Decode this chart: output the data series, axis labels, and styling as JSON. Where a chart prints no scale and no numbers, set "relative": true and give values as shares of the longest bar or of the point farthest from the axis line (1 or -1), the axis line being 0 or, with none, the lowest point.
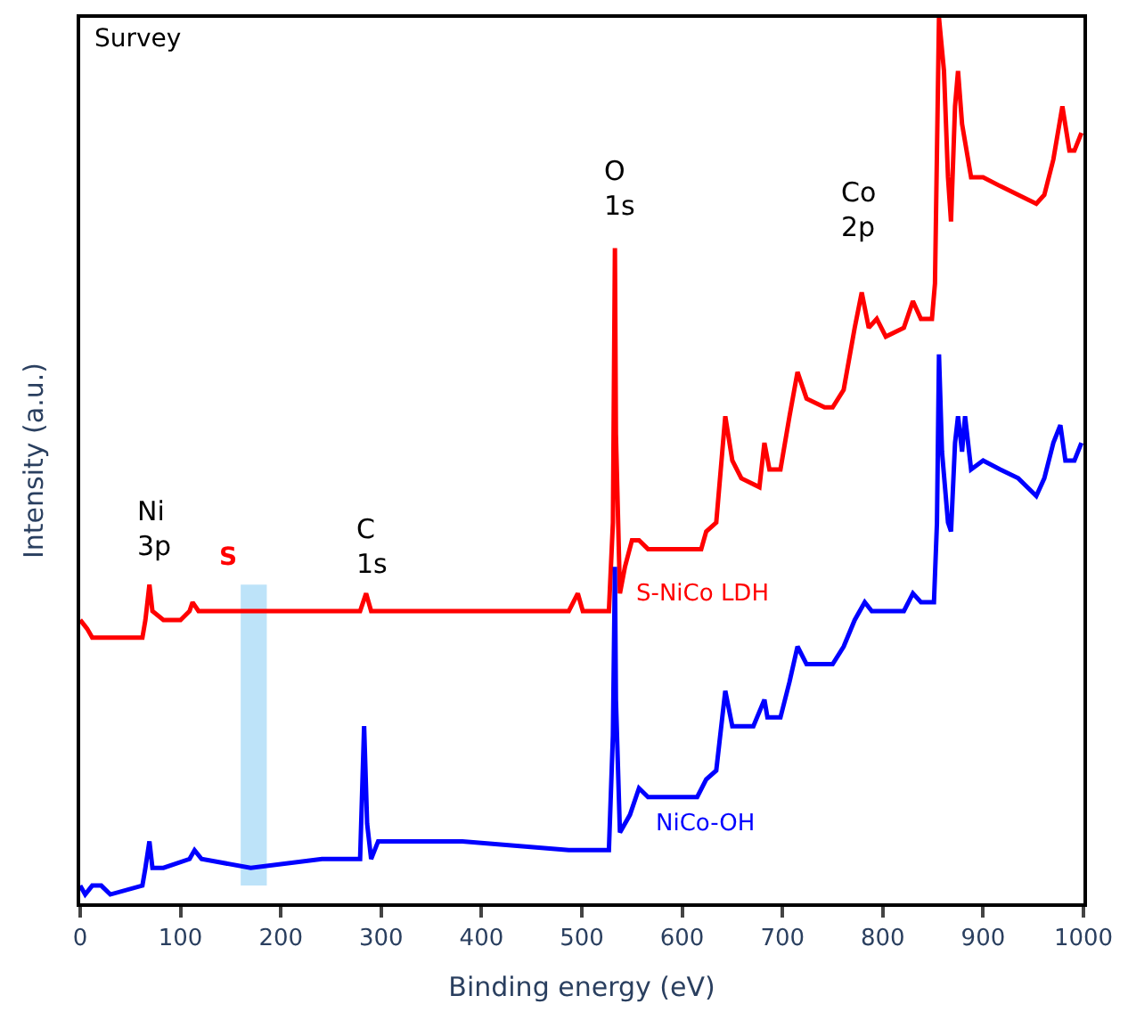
{
  "chart_data": {
    "type": "line",
    "relative": true,
    "xlabel": "Binding energy (eV)",
    "ylabel": "Intensity (a.u.)",
    "xlim": [
      0,
      1000
    ],
    "xticks": [
      0,
      100,
      200,
      300,
      400,
      500,
      600,
      700,
      800,
      900,
      1000
    ],
    "grid": false,
    "legend": false,
    "marker": "none",
    "line_style": "solid",
    "series": [
      {
        "name": "S-NiCo LDH",
        "color": "#ff0000",
        "x": [
          0,
          7,
          12,
          21,
          33,
          56,
          62,
          65,
          69,
          72,
          83,
          100,
          109,
          112,
          118,
          135,
          188,
          241,
          279,
          285,
          290,
          302,
          381,
          487,
          496,
          501,
          513,
          527,
          531,
          533,
          534,
          538,
          543,
          550,
          557,
          566,
          583,
          619,
          624,
          634,
          640,
          643,
          650,
          659,
          677,
          682,
          687,
          698,
          707,
          715,
          724,
          742,
          750,
          761,
          772,
          779,
          786,
          794,
          803,
          821,
          830,
          838,
          849,
          852,
          856,
          861,
          865,
          868,
          872,
          875,
          879,
          882,
          888,
          900,
          917,
          935,
          953,
          961,
          970,
          979,
          986,
          991,
          998
        ],
        "values": [
          0.32,
          0.31,
          0.3,
          0.3,
          0.3,
          0.3,
          0.3,
          0.32,
          0.36,
          0.33,
          0.32,
          0.32,
          0.33,
          0.34,
          0.33,
          0.33,
          0.33,
          0.33,
          0.33,
          0.35,
          0.33,
          0.33,
          0.33,
          0.33,
          0.35,
          0.33,
          0.33,
          0.33,
          0.43,
          0.74,
          0.53,
          0.35,
          0.38,
          0.41,
          0.41,
          0.4,
          0.4,
          0.4,
          0.42,
          0.43,
          0.51,
          0.55,
          0.5,
          0.48,
          0.47,
          0.52,
          0.49,
          0.49,
          0.55,
          0.6,
          0.57,
          0.56,
          0.56,
          0.58,
          0.65,
          0.69,
          0.65,
          0.66,
          0.64,
          0.65,
          0.68,
          0.66,
          0.66,
          0.7,
          1.0,
          0.94,
          0.82,
          0.77,
          0.9,
          0.94,
          0.88,
          0.86,
          0.82,
          0.82,
          0.81,
          0.8,
          0.79,
          0.8,
          0.84,
          0.9,
          0.85,
          0.85,
          0.87
        ]
      },
      {
        "name": "NiCo-OH",
        "color": "#0000ff",
        "x": [
          0,
          5,
          12,
          21,
          30,
          62,
          65,
          69,
          72,
          83,
          109,
          114,
          121,
          170,
          241,
          279,
          283,
          286,
          290,
          297,
          302,
          381,
          487,
          527,
          531,
          533,
          534,
          538,
          548,
          557,
          566,
          615,
          624,
          634,
          640,
          643,
          650,
          671,
          682,
          685,
          698,
          707,
          715,
          724,
          750,
          761,
          772,
          782,
          789,
          821,
          830,
          838,
          851,
          854,
          856,
          859,
          865,
          868,
          872,
          875,
          879,
          882,
          888,
          900,
          917,
          935,
          953,
          961,
          970,
          977,
          982,
          991,
          998
        ],
        "values": [
          0.02,
          0.01,
          0.02,
          0.02,
          0.01,
          0.02,
          0.04,
          0.07,
          0.04,
          0.04,
          0.05,
          0.06,
          0.05,
          0.04,
          0.05,
          0.05,
          0.2,
          0.09,
          0.05,
          0.07,
          0.07,
          0.07,
          0.06,
          0.06,
          0.19,
          0.38,
          0.23,
          0.08,
          0.1,
          0.13,
          0.12,
          0.12,
          0.14,
          0.15,
          0.21,
          0.24,
          0.2,
          0.2,
          0.23,
          0.21,
          0.21,
          0.25,
          0.29,
          0.27,
          0.27,
          0.29,
          0.32,
          0.34,
          0.33,
          0.33,
          0.35,
          0.34,
          0.34,
          0.43,
          0.62,
          0.51,
          0.43,
          0.42,
          0.52,
          0.55,
          0.51,
          0.55,
          0.49,
          0.5,
          0.49,
          0.48,
          0.46,
          0.48,
          0.52,
          0.54,
          0.5,
          0.5,
          0.52
        ]
      }
    ],
    "bands": [
      {
        "axis": "x",
        "from": 160,
        "to": 186,
        "label": "S",
        "color": "#bde3f9"
      }
    ],
    "annotations": [
      "Survey",
      "O\n1s",
      "Co\n2p",
      "Ni\n3p",
      "C\n1s"
    ]
  }
}
